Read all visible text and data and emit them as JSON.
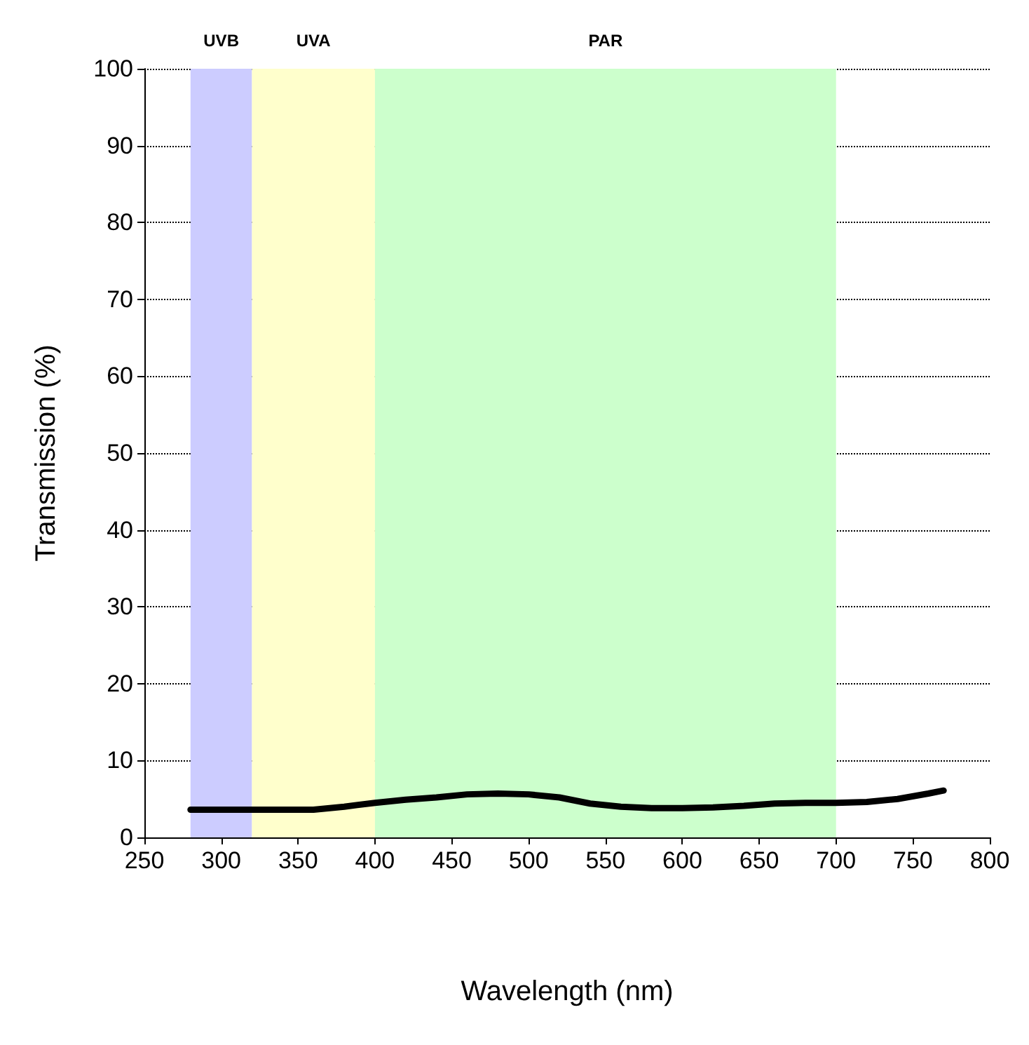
{
  "chart_data": {
    "type": "line",
    "xlabel": "Wavelength (nm)",
    "ylabel": "Transmission (%)",
    "x": [
      280,
      300,
      320,
      360,
      380,
      400,
      420,
      440,
      460,
      480,
      500,
      520,
      540,
      560,
      580,
      600,
      620,
      640,
      660,
      680,
      700,
      720,
      740,
      760,
      770
    ],
    "series": [
      {
        "color": "#000000",
        "values": [
          3.6,
          3.6,
          3.6,
          3.6,
          4.0,
          4.5,
          4.9,
          5.2,
          5.6,
          5.7,
          5.6,
          5.2,
          4.4,
          4.0,
          3.8,
          3.8,
          3.9,
          4.1,
          4.4,
          4.5,
          4.5,
          4.6,
          5.0,
          5.7,
          6.1
        ]
      }
    ],
    "xlim": [
      250,
      800
    ],
    "xticks": [
      250,
      300,
      350,
      400,
      450,
      500,
      550,
      600,
      650,
      700,
      750,
      800
    ],
    "ylim": [
      0,
      100
    ],
    "yticks": [
      0,
      10,
      20,
      30,
      40,
      50,
      60,
      70,
      80,
      90,
      100
    ],
    "grid": "y",
    "marker": "none",
    "line_style": "solid",
    "bands": [
      {
        "axis": "x",
        "from": 280,
        "to": 320,
        "label": "UVB",
        "color": "#ccccff"
      },
      {
        "axis": "x",
        "from": 320,
        "to": 400,
        "label": "UVA",
        "color": "#ffffcc"
      },
      {
        "axis": "x",
        "from": 400,
        "to": 700,
        "label": "PAR",
        "color": "#ccffcc"
      }
    ]
  }
}
